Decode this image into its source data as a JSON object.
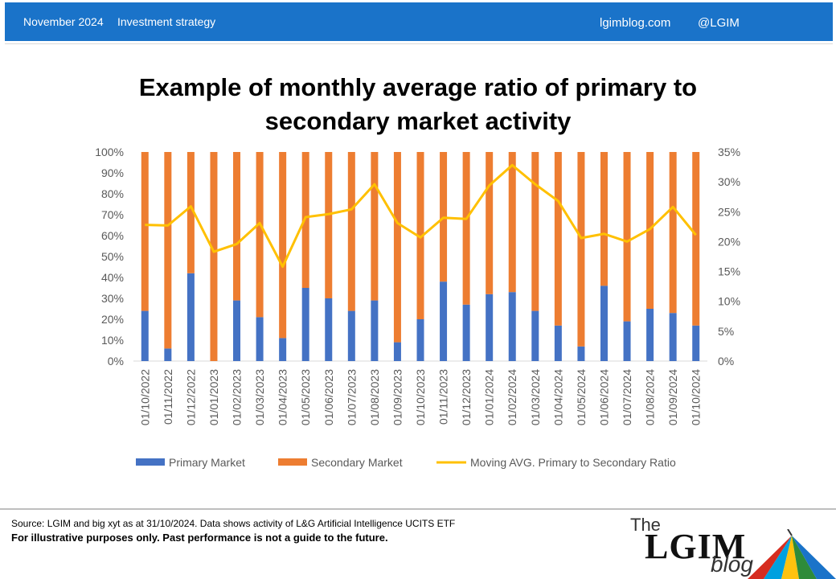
{
  "header": {
    "date": "November 2024",
    "category": "Investment strategy",
    "site": "lgimblog.com",
    "handle": "@LGIM"
  },
  "title_line1": "Example of monthly average ratio of primary to",
  "title_line2": "secondary market activity",
  "footer": {
    "source": "Source: LGIM and big xyt as at 31/10/2024.  Data shows activity of L&G Artificial Intelligence UCITS ETF",
    "disclaimer": "For illustrative purposes only. Past performance is not a guide to the future."
  },
  "logo": {
    "the": "The",
    "lgim": "LGIM",
    "blog": "blog"
  },
  "colors": {
    "header_band": "#1a73c9",
    "primary": "#4472c4",
    "secondary": "#ed7d31",
    "ratio": "#ffc000"
  },
  "chart_data": {
    "type": "bar",
    "stacked": true,
    "categories": [
      "01/10/2022",
      "01/11/2022",
      "01/12/2022",
      "01/01/2023",
      "01/02/2023",
      "01/03/2023",
      "01/04/2023",
      "01/05/2023",
      "01/06/2023",
      "01/07/2023",
      "01/08/2023",
      "01/09/2023",
      "01/10/2023",
      "01/11/2023",
      "01/12/2023",
      "01/01/2024",
      "01/02/2024",
      "01/03/2024",
      "01/04/2024",
      "01/05/2024",
      "01/06/2024",
      "01/07/2024",
      "01/08/2024",
      "01/09/2024",
      "01/10/2024"
    ],
    "series": [
      {
        "name": "Primary Market",
        "axis": "left",
        "values": [
          24,
          6,
          42,
          0,
          29,
          21,
          11,
          35,
          30,
          24,
          29,
          9,
          20,
          38,
          27,
          32,
          33,
          24,
          17,
          7,
          36,
          19,
          25,
          23,
          17
        ]
      },
      {
        "name": "Secondary Market",
        "axis": "left",
        "values": [
          76,
          94,
          58,
          100,
          71,
          79,
          89,
          65,
          70,
          76,
          71,
          91,
          80,
          62,
          73,
          68,
          67,
          76,
          83,
          93,
          64,
          81,
          75,
          77,
          83
        ]
      },
      {
        "name": "Moving AVG. Primary to Secondary Ratio",
        "axis": "right",
        "type": "line",
        "values": [
          22.8,
          22.7,
          25.9,
          18.3,
          19.6,
          23.1,
          15.8,
          24.1,
          24.6,
          25.4,
          29.6,
          23.1,
          20.7,
          24.0,
          23.8,
          29.4,
          32.8,
          29.6,
          26.8,
          20.6,
          21.3,
          20.0,
          22.1,
          25.8,
          21.1
        ]
      }
    ],
    "y_left": {
      "min": 0,
      "max": 100,
      "ticks": [
        "0%",
        "10%",
        "20%",
        "30%",
        "40%",
        "50%",
        "60%",
        "70%",
        "80%",
        "90%",
        "100%"
      ]
    },
    "y_right": {
      "min": 0,
      "max": 35,
      "ticks": [
        "0%",
        "5%",
        "10%",
        "15%",
        "20%",
        "25%",
        "30%",
        "35%"
      ]
    },
    "legend_position": "bottom",
    "grid": false
  }
}
